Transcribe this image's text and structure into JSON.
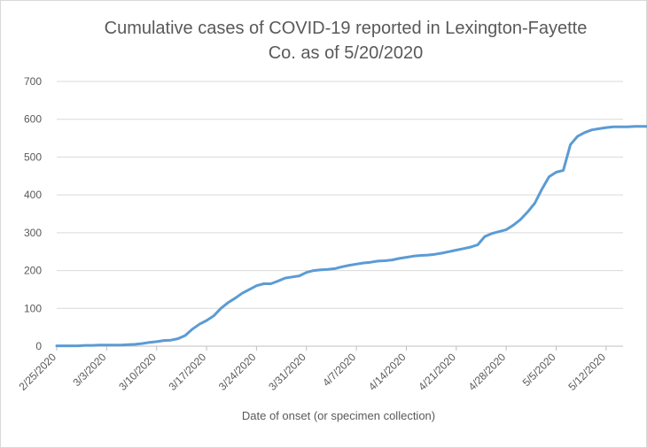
{
  "chart_data": {
    "type": "line",
    "title": "Cumulative cases of COVID-19 reported in Lexington-Fayette\nCo.  as of 5/20/2020",
    "xlabel": "Date of onset (or specimen collection)",
    "ylabel": "",
    "ylim": [
      0,
      700
    ],
    "yticks": [
      0,
      100,
      200,
      300,
      400,
      500,
      600,
      700
    ],
    "xtick_labels": [
      "2/25/2020",
      "3/3/2020",
      "3/10/2020",
      "3/17/2020",
      "3/24/2020",
      "3/31/2020",
      "4/7/2020",
      "4/14/2020",
      "4/21/2020",
      "4/28/2020",
      "5/5/2020",
      "5/12/2020"
    ],
    "grid": true,
    "color": "#5b9bd5",
    "series": [
      {
        "name": "",
        "x": [
          "2/25/2020",
          "2/26/2020",
          "2/27/2020",
          "2/28/2020",
          "2/29/2020",
          "3/1/2020",
          "3/2/2020",
          "3/3/2020",
          "3/4/2020",
          "3/5/2020",
          "3/6/2020",
          "3/7/2020",
          "3/8/2020",
          "3/9/2020",
          "3/10/2020",
          "3/11/2020",
          "3/12/2020",
          "3/13/2020",
          "3/14/2020",
          "3/15/2020",
          "3/16/2020",
          "3/17/2020",
          "3/18/2020",
          "3/19/2020",
          "3/20/2020",
          "3/21/2020",
          "3/22/2020",
          "3/23/2020",
          "3/24/2020",
          "3/25/2020",
          "3/26/2020",
          "3/27/2020",
          "3/28/2020",
          "3/29/2020",
          "3/30/2020",
          "3/31/2020",
          "4/1/2020",
          "4/2/2020",
          "4/3/2020",
          "4/4/2020",
          "4/5/2020",
          "4/6/2020",
          "4/7/2020",
          "4/8/2020",
          "4/9/2020",
          "4/10/2020",
          "4/11/2020",
          "4/12/2020",
          "4/13/2020",
          "4/14/2020",
          "4/15/2020",
          "4/16/2020",
          "4/17/2020",
          "4/18/2020",
          "4/19/2020",
          "4/20/2020",
          "4/21/2020",
          "4/22/2020",
          "4/23/2020",
          "4/24/2020",
          "4/25/2020",
          "4/26/2020",
          "4/27/2020",
          "4/28/2020",
          "4/29/2020",
          "4/30/2020",
          "5/1/2020",
          "5/2/2020",
          "5/3/2020",
          "5/4/2020",
          "5/5/2020",
          "5/6/2020",
          "5/7/2020",
          "5/8/2020",
          "5/9/2020",
          "5/10/2020",
          "5/11/2020",
          "5/12/2020",
          "5/13/2020",
          "5/14/2020",
          "5/15/2020",
          "5/16/2020",
          "5/17/2020",
          "5/18/2020",
          "5/19/2020"
        ],
        "values": [
          1,
          1,
          1,
          1,
          2,
          2,
          3,
          3,
          3,
          3,
          4,
          5,
          7,
          10,
          12,
          15,
          16,
          20,
          28,
          45,
          58,
          68,
          80,
          100,
          115,
          127,
          140,
          150,
          160,
          165,
          165,
          172,
          180,
          183,
          186,
          195,
          200,
          202,
          203,
          205,
          210,
          214,
          217,
          220,
          222,
          225,
          226,
          228,
          232,
          235,
          238,
          240,
          241,
          243,
          246,
          250,
          254,
          258,
          262,
          268,
          290,
          298,
          303,
          308,
          320,
          335,
          355,
          378,
          415,
          448,
          460,
          465,
          533,
          555,
          565,
          572,
          575,
          578,
          580,
          580,
          580,
          581,
          581,
          581,
          582
        ]
      }
    ]
  }
}
